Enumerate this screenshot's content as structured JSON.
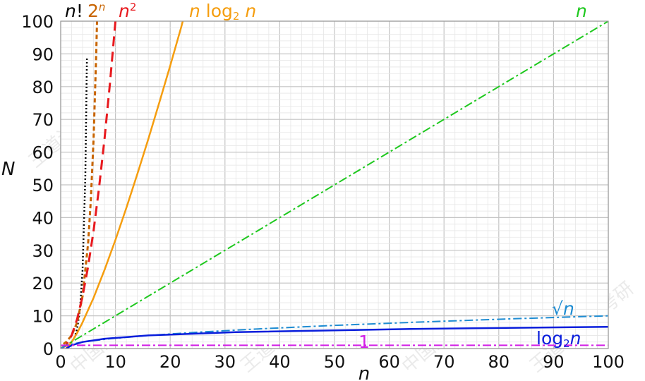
{
  "chart_data": {
    "type": "line",
    "xlabel": "n",
    "ylabel": "N",
    "xlim": [
      0,
      100
    ],
    "ylim": [
      0,
      100
    ],
    "x_ticks": [
      0,
      10,
      20,
      30,
      40,
      50,
      60,
      70,
      80,
      90,
      100
    ],
    "y_ticks": [
      0,
      10,
      20,
      30,
      40,
      50,
      60,
      70,
      80,
      90,
      100
    ],
    "grid": true,
    "minor_grid_step": 2,
    "series": [
      {
        "name": "n!",
        "label_parts": [
          "n",
          "!"
        ],
        "color": "#000000",
        "dash": "2,3",
        "width": 2.5,
        "points": [
          [
            0.5,
            0.886
          ],
          [
            1,
            1
          ],
          [
            1.5,
            1.33
          ],
          [
            2,
            2
          ],
          [
            2.5,
            3.32
          ],
          [
            3,
            6
          ],
          [
            3.5,
            11.6
          ],
          [
            4,
            24
          ],
          [
            4.5,
            52.3
          ],
          [
            4.8,
            89
          ]
        ]
      },
      {
        "name": "2^n",
        "label_parts": [
          "2",
          "n"
        ],
        "color": "#c86400",
        "dash": "6,4",
        "width": 3,
        "points": [
          [
            0.5,
            1.41
          ],
          [
            1,
            2
          ],
          [
            2,
            4
          ],
          [
            3,
            8
          ],
          [
            4,
            16
          ],
          [
            5,
            32
          ],
          [
            5.5,
            45.3
          ],
          [
            6,
            64
          ],
          [
            6.5,
            90.5
          ],
          [
            6.64,
            100
          ]
        ]
      },
      {
        "name": "n^2",
        "label_parts": [
          "n",
          "2"
        ],
        "color": "#e8191e",
        "dash": "14,8",
        "width": 3,
        "points": [
          [
            0,
            0
          ],
          [
            1,
            1
          ],
          [
            2,
            4
          ],
          [
            3,
            9
          ],
          [
            4,
            16
          ],
          [
            5,
            25
          ],
          [
            6,
            36
          ],
          [
            7,
            49
          ],
          [
            8,
            64
          ],
          [
            9,
            81
          ],
          [
            10,
            100
          ]
        ]
      },
      {
        "name": "n log2 n",
        "label_parts": [
          "n",
          " log",
          "2",
          " n"
        ],
        "color": "#f59d0e",
        "dash": "",
        "width": 2.5,
        "points": [
          [
            1,
            0
          ],
          [
            2,
            2
          ],
          [
            3,
            4.75
          ],
          [
            4,
            8
          ],
          [
            6,
            15.5
          ],
          [
            8,
            24
          ],
          [
            10,
            33.2
          ],
          [
            12,
            43
          ],
          [
            14,
            53.3
          ],
          [
            16,
            64
          ],
          [
            18,
            75.1
          ],
          [
            20,
            86.4
          ],
          [
            22,
            98.1
          ],
          [
            22.3,
            100
          ]
        ]
      },
      {
        "name": "n",
        "label_parts": [
          "n"
        ],
        "color": "#1ec81e",
        "dash": "12,4,3,4",
        "width": 2,
        "points": [
          [
            0,
            0
          ],
          [
            100,
            100
          ]
        ]
      },
      {
        "name": "sqrt n",
        "label_parts": [
          "√",
          "n"
        ],
        "color": "#1e8cd2",
        "dash": "12,4,3,4",
        "width": 2,
        "points": [
          [
            0,
            0
          ],
          [
            1,
            1
          ],
          [
            4,
            2
          ],
          [
            9,
            3
          ],
          [
            16,
            4
          ],
          [
            25,
            5
          ],
          [
            36,
            6
          ],
          [
            49,
            7
          ],
          [
            64,
            8
          ],
          [
            81,
            9
          ],
          [
            100,
            10
          ]
        ]
      },
      {
        "name": "log2 n",
        "label_parts": [
          "log",
          "2",
          "n"
        ],
        "color": "#0a1edc",
        "dash": "",
        "width": 2.5,
        "points": [
          [
            1,
            0
          ],
          [
            2,
            1
          ],
          [
            4,
            2
          ],
          [
            8,
            3
          ],
          [
            16,
            4
          ],
          [
            32,
            5
          ],
          [
            64,
            6
          ],
          [
            100,
            6.64
          ]
        ]
      },
      {
        "name": "1",
        "label_parts": [
          "1"
        ],
        "color": "#d21ee6",
        "dash": "12,4,3,4",
        "width": 2,
        "points": [
          [
            0,
            1
          ],
          [
            100,
            1
          ]
        ]
      }
    ],
    "watermarks": [
      "王道计算机考研",
      "中国大学MOOC"
    ]
  }
}
